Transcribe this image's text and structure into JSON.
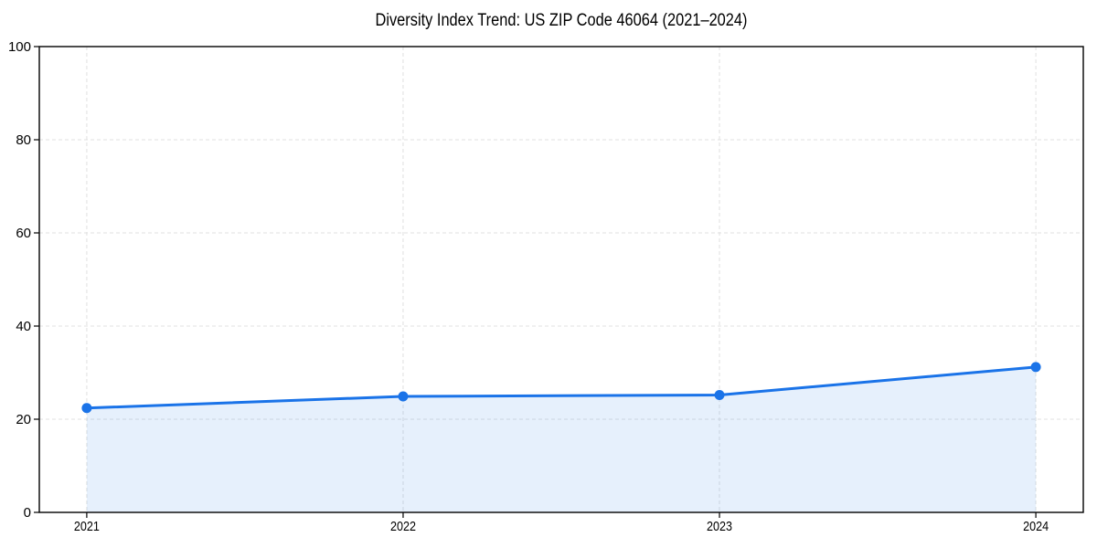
{
  "chart_data": {
    "type": "line",
    "title": "Diversity Index Trend: US ZIP Code 46064 (2021–2024)",
    "x": [
      2021,
      2022,
      2023,
      2024
    ],
    "values": [
      22.4,
      24.9,
      25.2,
      31.2
    ],
    "xticks": [
      "2021",
      "2022",
      "2023",
      "2024"
    ],
    "yticks": [
      0,
      20,
      40,
      60,
      80,
      100
    ],
    "xlim": [
      2020.85,
      2024.15
    ],
    "ylim": [
      0,
      100
    ],
    "xlabel": "",
    "ylabel": "",
    "grid": true,
    "grid_style": "dashed",
    "legend": false,
    "marker": "circle",
    "area_fill": true,
    "colors": {
      "line": "#1a73e8",
      "marker": "#1a73e8",
      "area": "#1a73e8",
      "area_opacity": 0.11,
      "grid": "#e0e0e0",
      "spine": "#000000",
      "tick": "#000000",
      "title": "#000000",
      "background": "#ffffff"
    }
  }
}
